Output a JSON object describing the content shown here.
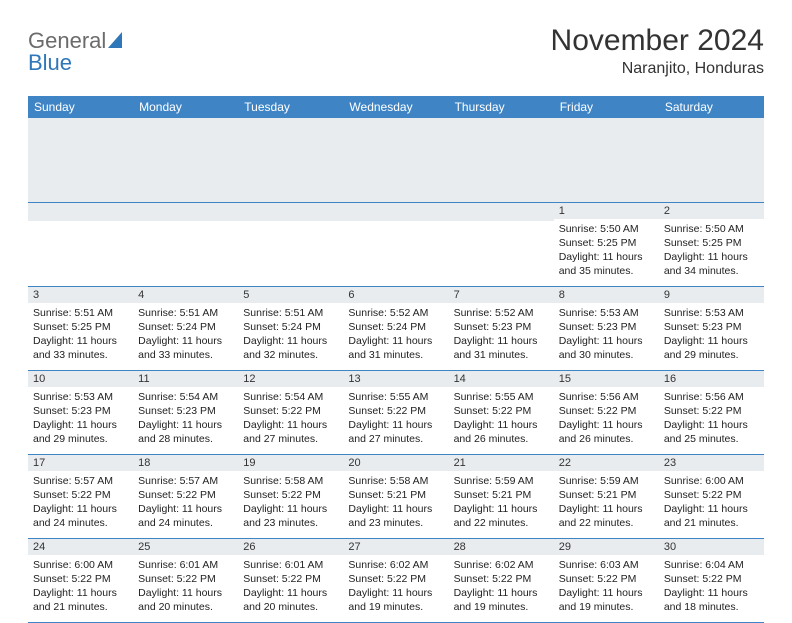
{
  "brand": {
    "text_gray": "General",
    "text_blue": "Blue"
  },
  "title": "November 2024",
  "location": "Naranjito, Honduras",
  "colors": {
    "header_bg": "#3f85c5",
    "header_text": "#ffffff",
    "daynum_bg": "#e9ecef",
    "row_divider": "#3f85c5",
    "logo_gray": "#6b6b6b",
    "logo_blue": "#2f77b8"
  },
  "weekdays": [
    "Sunday",
    "Monday",
    "Tuesday",
    "Wednesday",
    "Thursday",
    "Friday",
    "Saturday"
  ],
  "weeks": [
    [
      {
        "blank": true
      },
      {
        "blank": true
      },
      {
        "blank": true
      },
      {
        "blank": true
      },
      {
        "blank": true
      },
      {
        "day": "1",
        "sunrise": "5:50 AM",
        "sunset": "5:25 PM",
        "daylight": "11 hours and 35 minutes."
      },
      {
        "day": "2",
        "sunrise": "5:50 AM",
        "sunset": "5:25 PM",
        "daylight": "11 hours and 34 minutes."
      }
    ],
    [
      {
        "day": "3",
        "sunrise": "5:51 AM",
        "sunset": "5:25 PM",
        "daylight": "11 hours and 33 minutes."
      },
      {
        "day": "4",
        "sunrise": "5:51 AM",
        "sunset": "5:24 PM",
        "daylight": "11 hours and 33 minutes."
      },
      {
        "day": "5",
        "sunrise": "5:51 AM",
        "sunset": "5:24 PM",
        "daylight": "11 hours and 32 minutes."
      },
      {
        "day": "6",
        "sunrise": "5:52 AM",
        "sunset": "5:24 PM",
        "daylight": "11 hours and 31 minutes."
      },
      {
        "day": "7",
        "sunrise": "5:52 AM",
        "sunset": "5:23 PM",
        "daylight": "11 hours and 31 minutes."
      },
      {
        "day": "8",
        "sunrise": "5:53 AM",
        "sunset": "5:23 PM",
        "daylight": "11 hours and 30 minutes."
      },
      {
        "day": "9",
        "sunrise": "5:53 AM",
        "sunset": "5:23 PM",
        "daylight": "11 hours and 29 minutes."
      }
    ],
    [
      {
        "day": "10",
        "sunrise": "5:53 AM",
        "sunset": "5:23 PM",
        "daylight": "11 hours and 29 minutes."
      },
      {
        "day": "11",
        "sunrise": "5:54 AM",
        "sunset": "5:23 PM",
        "daylight": "11 hours and 28 minutes."
      },
      {
        "day": "12",
        "sunrise": "5:54 AM",
        "sunset": "5:22 PM",
        "daylight": "11 hours and 27 minutes."
      },
      {
        "day": "13",
        "sunrise": "5:55 AM",
        "sunset": "5:22 PM",
        "daylight": "11 hours and 27 minutes."
      },
      {
        "day": "14",
        "sunrise": "5:55 AM",
        "sunset": "5:22 PM",
        "daylight": "11 hours and 26 minutes."
      },
      {
        "day": "15",
        "sunrise": "5:56 AM",
        "sunset": "5:22 PM",
        "daylight": "11 hours and 26 minutes."
      },
      {
        "day": "16",
        "sunrise": "5:56 AM",
        "sunset": "5:22 PM",
        "daylight": "11 hours and 25 minutes."
      }
    ],
    [
      {
        "day": "17",
        "sunrise": "5:57 AM",
        "sunset": "5:22 PM",
        "daylight": "11 hours and 24 minutes."
      },
      {
        "day": "18",
        "sunrise": "5:57 AM",
        "sunset": "5:22 PM",
        "daylight": "11 hours and 24 minutes."
      },
      {
        "day": "19",
        "sunrise": "5:58 AM",
        "sunset": "5:22 PM",
        "daylight": "11 hours and 23 minutes."
      },
      {
        "day": "20",
        "sunrise": "5:58 AM",
        "sunset": "5:21 PM",
        "daylight": "11 hours and 23 minutes."
      },
      {
        "day": "21",
        "sunrise": "5:59 AM",
        "sunset": "5:21 PM",
        "daylight": "11 hours and 22 minutes."
      },
      {
        "day": "22",
        "sunrise": "5:59 AM",
        "sunset": "5:21 PM",
        "daylight": "11 hours and 22 minutes."
      },
      {
        "day": "23",
        "sunrise": "6:00 AM",
        "sunset": "5:22 PM",
        "daylight": "11 hours and 21 minutes."
      }
    ],
    [
      {
        "day": "24",
        "sunrise": "6:00 AM",
        "sunset": "5:22 PM",
        "daylight": "11 hours and 21 minutes."
      },
      {
        "day": "25",
        "sunrise": "6:01 AM",
        "sunset": "5:22 PM",
        "daylight": "11 hours and 20 minutes."
      },
      {
        "day": "26",
        "sunrise": "6:01 AM",
        "sunset": "5:22 PM",
        "daylight": "11 hours and 20 minutes."
      },
      {
        "day": "27",
        "sunrise": "6:02 AM",
        "sunset": "5:22 PM",
        "daylight": "11 hours and 19 minutes."
      },
      {
        "day": "28",
        "sunrise": "6:02 AM",
        "sunset": "5:22 PM",
        "daylight": "11 hours and 19 minutes."
      },
      {
        "day": "29",
        "sunrise": "6:03 AM",
        "sunset": "5:22 PM",
        "daylight": "11 hours and 19 minutes."
      },
      {
        "day": "30",
        "sunrise": "6:04 AM",
        "sunset": "5:22 PM",
        "daylight": "11 hours and 18 minutes."
      }
    ]
  ],
  "labels": {
    "sunrise": "Sunrise: ",
    "sunset": "Sunset: ",
    "daylight": "Daylight: "
  }
}
